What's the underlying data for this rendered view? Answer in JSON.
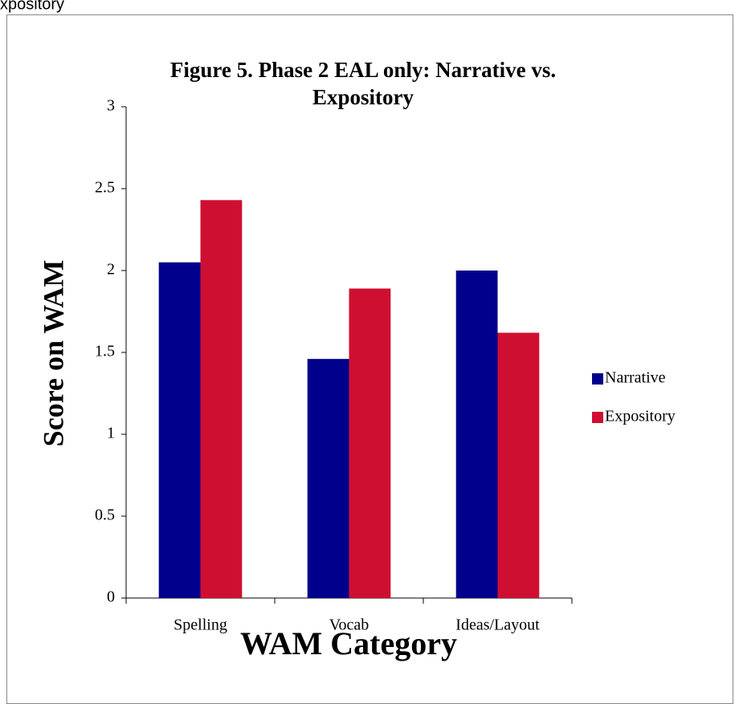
{
  "caption": "xpository",
  "chart_data": {
    "type": "bar",
    "title": "Figure 5. Phase 2 EAL only:  Narrative vs. Expository",
    "x_label": "WAM Category",
    "y_label": "Score on WAM",
    "categories": [
      "Spelling",
      "Vocab",
      "Ideas/Layout"
    ],
    "series": [
      {
        "name": "Narrative",
        "color": "#00008c",
        "values": [
          2.05,
          1.46,
          2.0
        ]
      },
      {
        "name": "Expository",
        "color": "#cf0f32",
        "values": [
          2.43,
          1.89,
          1.62
        ]
      }
    ],
    "ylim": [
      0,
      3
    ],
    "yticks": [
      0,
      0.5,
      1,
      1.5,
      2,
      2.5,
      3
    ],
    "grid": false,
    "legend": "right"
  }
}
